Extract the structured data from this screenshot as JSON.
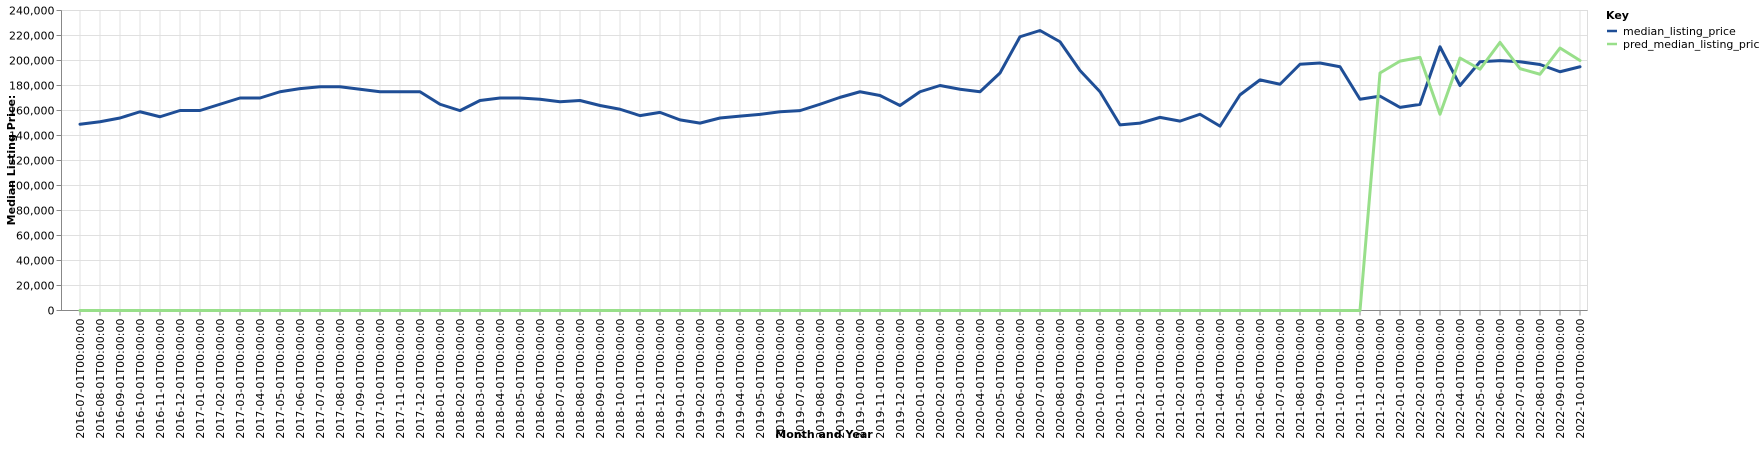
{
  "chart_data": {
    "type": "line",
    "xlabel": "Month and Year",
    "ylabel": "Median Listing Price:",
    "ylim": [
      0,
      240000
    ],
    "y_ticks": [
      "0",
      "20,000",
      "40,000",
      "60,000",
      "80,000",
      "100,000",
      "120,000",
      "140,000",
      "160,000",
      "180,000",
      "200,000",
      "220,000",
      "240,000"
    ],
    "grid": true,
    "legend_title": "Key",
    "legend_position": "top-right",
    "categories": [
      "2016-07-01T00:00:00",
      "2016-08-01T00:00:00",
      "2016-09-01T00:00:00",
      "2016-10-01T00:00:00",
      "2016-11-01T00:00:00",
      "2016-12-01T00:00:00",
      "2017-01-01T00:00:00",
      "2017-02-01T00:00:00",
      "2017-03-01T00:00:00",
      "2017-04-01T00:00:00",
      "2017-05-01T00:00:00",
      "2017-06-01T00:00:00",
      "2017-07-01T00:00:00",
      "2017-08-01T00:00:00",
      "2017-09-01T00:00:00",
      "2017-10-01T00:00:00",
      "2017-11-01T00:00:00",
      "2017-12-01T00:00:00",
      "2018-01-01T00:00:00",
      "2018-02-01T00:00:00",
      "2018-03-01T00:00:00",
      "2018-04-01T00:00:00",
      "2018-05-01T00:00:00",
      "2018-06-01T00:00:00",
      "2018-07-01T00:00:00",
      "2018-08-01T00:00:00",
      "2018-09-01T00:00:00",
      "2018-10-01T00:00:00",
      "2018-11-01T00:00:00",
      "2018-12-01T00:00:00",
      "2019-01-01T00:00:00",
      "2019-02-01T00:00:00",
      "2019-03-01T00:00:00",
      "2019-04-01T00:00:00",
      "2019-05-01T00:00:00",
      "2019-06-01T00:00:00",
      "2019-07-01T00:00:00",
      "2019-08-01T00:00:00",
      "2019-09-01T00:00:00",
      "2019-10-01T00:00:00",
      "2019-11-01T00:00:00",
      "2019-12-01T00:00:00",
      "2020-01-01T00:00:00",
      "2020-02-01T00:00:00",
      "2020-03-01T00:00:00",
      "2020-04-01T00:00:00",
      "2020-05-01T00:00:00",
      "2020-06-01T00:00:00",
      "2020-07-01T00:00:00",
      "2020-08-01T00:00:00",
      "2020-09-01T00:00:00",
      "2020-10-01T00:00:00",
      "2020-11-01T00:00:00",
      "2020-12-01T00:00:00",
      "2021-01-01T00:00:00",
      "2021-02-01T00:00:00",
      "2021-03-01T00:00:00",
      "2021-04-01T00:00:00",
      "2021-05-01T00:00:00",
      "2021-06-01T00:00:00",
      "2021-07-01T00:00:00",
      "2021-08-01T00:00:00",
      "2021-09-01T00:00:00",
      "2021-10-01T00:00:00",
      "2021-11-01T00:00:00",
      "2021-12-01T00:00:00",
      "2022-01-01T00:00:00",
      "2022-02-01T00:00:00",
      "2022-03-01T00:00:00",
      "2022-04-01T00:00:00",
      "2022-05-01T00:00:00",
      "2022-06-01T00:00:00",
      "2022-07-01T00:00:00",
      "2022-08-01T00:00:00",
      "2022-09-01T00:00:00",
      "2022-10-01T00:00:00"
    ],
    "series": [
      {
        "name": "median_listing_price",
        "color": "#1f4e96",
        "values": [
          149000,
          151000,
          154000,
          159000,
          155000,
          160000,
          160000,
          165000,
          170000,
          170000,
          175000,
          177500,
          179000,
          179000,
          177000,
          175000,
          175000,
          175000,
          165000,
          159900,
          168000,
          170000,
          170000,
          169000,
          167000,
          168000,
          164000,
          161000,
          155900,
          158500,
          152500,
          149900,
          154000,
          155500,
          156900,
          159000,
          159900,
          165000,
          170500,
          175000,
          172000,
          164000,
          175000,
          180000,
          177000,
          175000,
          190000,
          219000,
          224000,
          215000,
          192000,
          175000,
          148500,
          149900,
          154500,
          151500,
          157000,
          147500,
          172500,
          184500,
          181000,
          197000,
          198000,
          195000,
          169000,
          171500,
          162500,
          164900,
          211000,
          180000,
          199000,
          199900,
          199000,
          196800,
          191000,
          195000
        ]
      },
      {
        "name": "pred_median_listing_price",
        "color": "#98df8a",
        "values": [
          0,
          0,
          0,
          0,
          0,
          0,
          0,
          0,
          0,
          0,
          0,
          0,
          0,
          0,
          0,
          0,
          0,
          0,
          0,
          0,
          0,
          0,
          0,
          0,
          0,
          0,
          0,
          0,
          0,
          0,
          0,
          0,
          0,
          0,
          0,
          0,
          0,
          0,
          0,
          0,
          0,
          0,
          0,
          0,
          0,
          0,
          0,
          0,
          0,
          0,
          0,
          0,
          0,
          0,
          0,
          0,
          0,
          0,
          0,
          0,
          0,
          0,
          0,
          0,
          0,
          190000,
          199500,
          202500,
          157000,
          202000,
          193000,
          214500,
          193500,
          189000,
          210000,
          200000
        ]
      }
    ]
  }
}
